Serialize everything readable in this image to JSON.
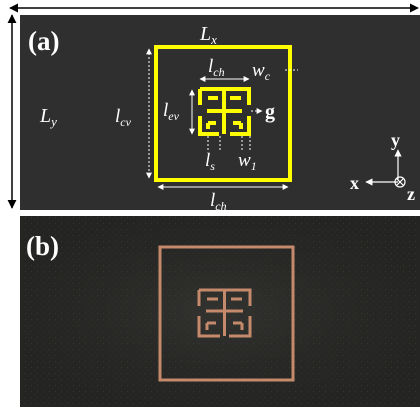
{
  "panel_a": {
    "panel_label": "(a)",
    "dimension_labels": {
      "Lx": {
        "main": "L",
        "sub": "x"
      },
      "Ly": {
        "main": "L",
        "sub": "y"
      },
      "lcv": {
        "main": "l",
        "sub": "cv"
      },
      "lch_outer": {
        "main": "l",
        "sub": "ch"
      },
      "lch_inner": {
        "main": "l",
        "sub": "ch"
      },
      "lev": {
        "main": "l",
        "sub": "ev"
      },
      "wc": {
        "main": "w",
        "sub": "c"
      },
      "g": {
        "main": "g",
        "sub": ""
      },
      "ls": {
        "main": "l",
        "sub": "s"
      },
      "w1": {
        "main": "w",
        "sub": "1"
      }
    },
    "axes": {
      "y": "y",
      "x": "x",
      "z": "z"
    },
    "colors": {
      "background": "#2f2f2f",
      "structure": "#ffff00",
      "annotation": "#ffffff"
    }
  },
  "panel_b": {
    "panel_label": "(b)",
    "colors": {
      "background": "#2a2a28",
      "copper": "#c58a6c"
    }
  }
}
